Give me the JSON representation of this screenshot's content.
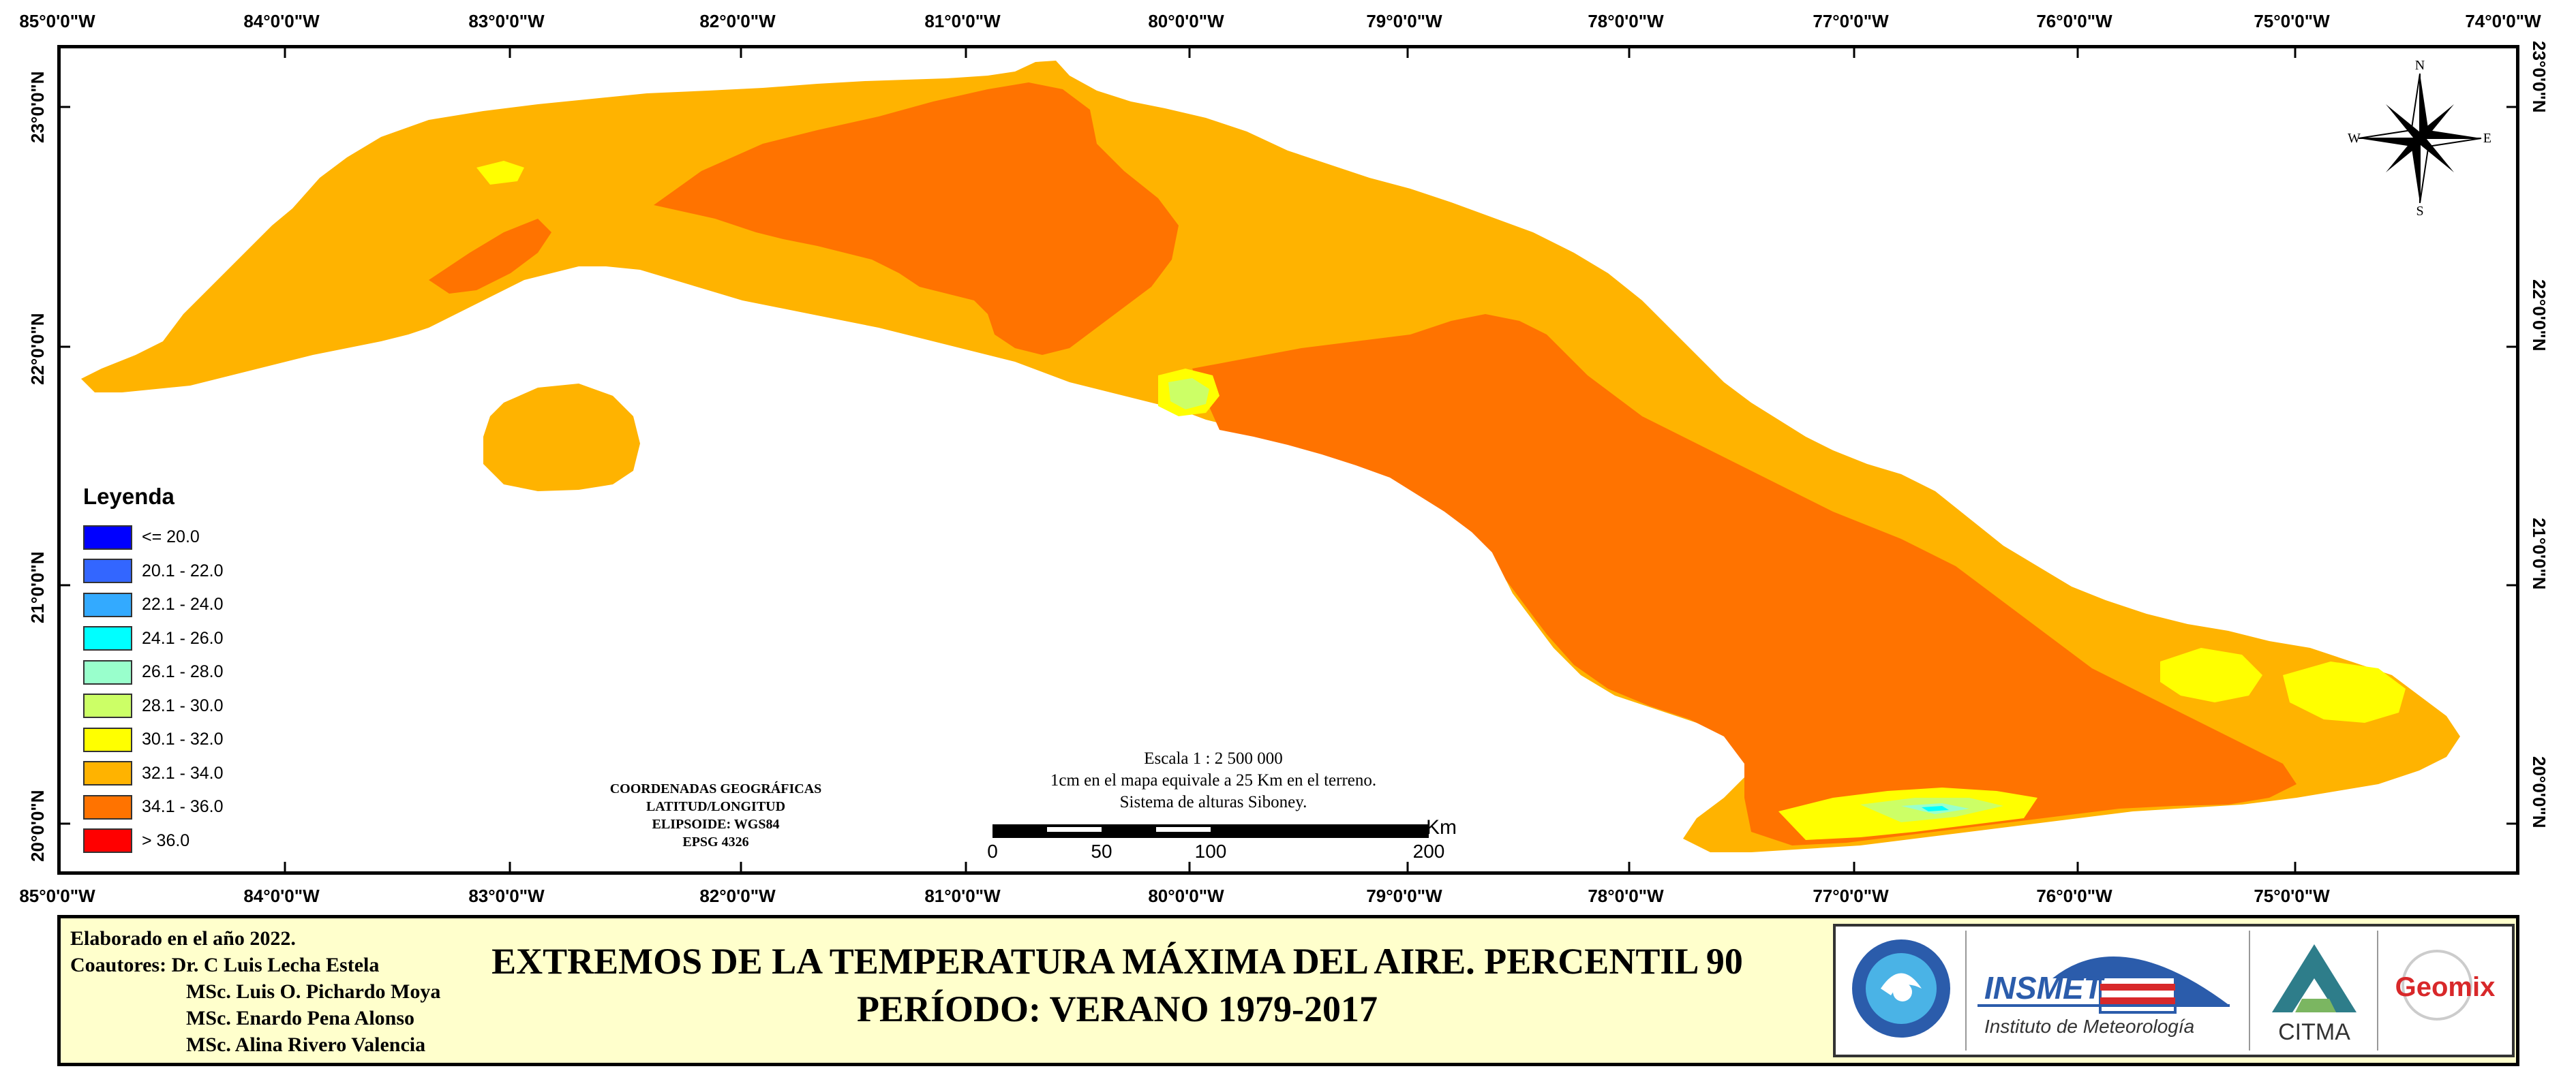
{
  "map": {
    "lon_labels": [
      "85°0'0\"W",
      "84°0'0\"W",
      "83°0'0\"W",
      "82°0'0\"W",
      "81°0'0\"W",
      "80°0'0\"W",
      "79°0'0\"W",
      "78°0'0\"W",
      "77°0'0\"W",
      "76°0'0\"W",
      "75°0'0\"W",
      "74°0'0\"W"
    ],
    "lat_labels": [
      "23°0'0\"N",
      "22°0'0\"N",
      "21°0'0\"N",
      "20°0'0\"N"
    ],
    "colors": {
      "class_32_34": "#ffb300",
      "class_34_36": "#ff7300",
      "class_30_32": "#ffff00",
      "class_28_30": "#ccff66",
      "class_26_28": "#99ffcc",
      "class_24_26": "#00ffff"
    }
  },
  "legend": {
    "title": "Leyenda",
    "items": [
      {
        "label": "<= 20.0",
        "color": "#0000ff"
      },
      {
        "label": "20.1 - 22.0",
        "color": "#3366ff"
      },
      {
        "label": "22.1 - 24.0",
        "color": "#33aaff"
      },
      {
        "label": "24.1 - 26.0",
        "color": "#00ffff"
      },
      {
        "label": "26.1 - 28.0",
        "color": "#99ffcc"
      },
      {
        "label": "28.1 - 30.0",
        "color": "#ccff66"
      },
      {
        "label": "30.1 - 32.0",
        "color": "#ffff00"
      },
      {
        "label": "32.1 - 34.0",
        "color": "#ffb300"
      },
      {
        "label": "34.1 - 36.0",
        "color": "#ff7300"
      },
      {
        "label": "> 36.0",
        "color": "#ff0000"
      }
    ]
  },
  "coords_info": {
    "line1": "COORDENADAS GEOGRÁFICAS",
    "line2": "LATITUD/LONGITUD",
    "line3": "ELIPSOIDE: WGS84",
    "line4": "EPSG 4326"
  },
  "scale": {
    "line1": "Escala 1 : 2 500 000",
    "line2": "1cm en el mapa equivale a 25 Km en el terreno.",
    "line3": "Sistema de alturas Siboney.",
    "ticks": [
      "0",
      "50",
      "100",
      "200"
    ],
    "unit": "Km"
  },
  "compass": {
    "n": "N",
    "s": "S",
    "e": "E",
    "w": "W"
  },
  "footer": {
    "elaborado": "Elaborado en el año 2022.",
    "coautores_label": "Coautores: Dr. C Luis Lecha Estela",
    "author2": "MSc. Luis O. Pichardo Moya",
    "author3": "MSc. Enardo Pena Alonso",
    "author4": "MSc. Alina Rivero Valencia",
    "title_line1": "EXTREMOS DE LA TEMPERATURA MÁXIMA DEL AIRE. PERCENTIL 90",
    "title_line2": "PERÍODO: VERANO 1979-2017"
  },
  "logos": {
    "insmet": "INSMET",
    "insmet_sub": "Instituto de Meteorología",
    "citma": "CITMA",
    "geomix": "Geomix"
  }
}
